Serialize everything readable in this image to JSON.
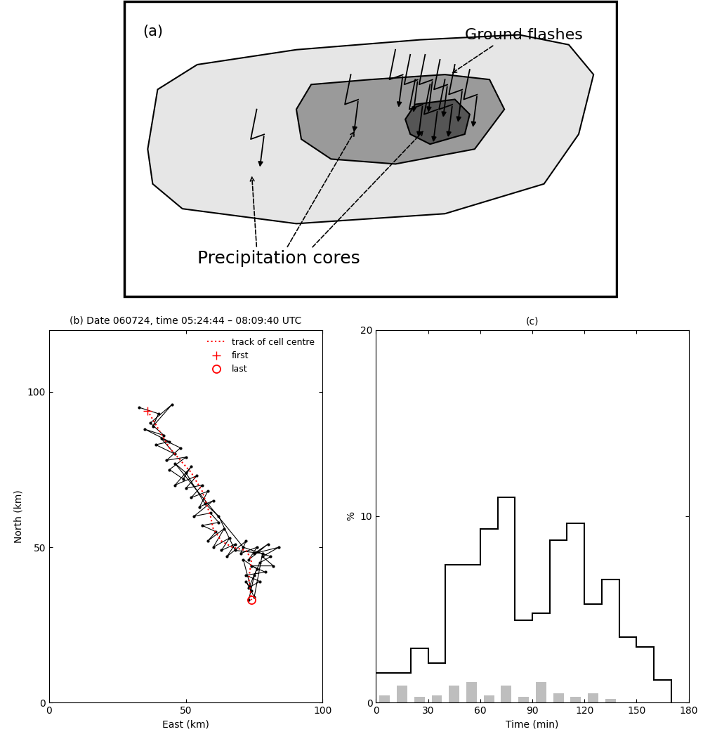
{
  "chart_data": [
    {
      "type": "diagram",
      "panel_label": "(a)",
      "annotations": [
        "Ground flashes",
        "Precipitation cores"
      ]
    },
    {
      "type": "line",
      "title": "(b) Date 060724, time 05:24:44 – 08:09:40 UTC",
      "x_label": "East (km)",
      "y_label": "North (km)",
      "xlim": [
        0,
        100
      ],
      "ylim": [
        0,
        120
      ],
      "xticks": [
        0,
        50,
        100
      ],
      "yticks": [
        0,
        50,
        100
      ],
      "legend": "upper right",
      "series": [
        {
          "color": "#000000",
          "marker": "point",
          "line_style": "solid",
          "x": [
            33,
            40,
            38,
            45,
            37,
            42,
            35,
            44,
            39,
            46,
            41,
            48,
            43,
            50,
            44,
            49,
            52,
            46,
            54,
            50,
            56,
            52,
            58,
            55,
            60,
            53,
            59,
            62,
            56,
            61,
            58,
            64,
            60,
            66,
            63,
            68,
            65,
            72,
            70,
            76,
            73,
            80,
            75,
            84,
            78,
            82,
            74,
            79,
            72,
            77,
            73,
            76,
            71,
            74,
            72,
            75,
            78,
            68,
            62,
            57,
            50,
            46,
            71,
            81,
            77,
            75,
            73
          ],
          "y": [
            95,
            93,
            89,
            96,
            90,
            86,
            88,
            84,
            83,
            80,
            85,
            82,
            78,
            79,
            75,
            72,
            76,
            70,
            73,
            69,
            70,
            66,
            68,
            63,
            65,
            60,
            61,
            58,
            57,
            55,
            52,
            56,
            50,
            53,
            49,
            51,
            47,
            52,
            48,
            50,
            46,
            51,
            48,
            50,
            47,
            44,
            44,
            42,
            41,
            39,
            37,
            43,
            46,
            36,
            39,
            34,
            48,
            49,
            60,
            64,
            74,
            77,
            50,
            47,
            45,
            41,
            33
          ]
        },
        {
          "name": "track of cell centre",
          "color": "#ff0000",
          "marker": "none",
          "line_style": "dotted",
          "x": [
            36,
            40,
            44,
            48,
            52,
            56,
            59,
            60,
            63,
            67,
            72,
            74,
            73,
            74
          ],
          "y": [
            94,
            88,
            82,
            78,
            74,
            68,
            60,
            56,
            52,
            50,
            49,
            46,
            40,
            33
          ]
        },
        {
          "name": "first",
          "color": "#ff0000",
          "marker": "plus",
          "line_style": "none",
          "x": [
            36
          ],
          "y": [
            94
          ]
        },
        {
          "name": "last",
          "color": "#ff0000",
          "marker": "circle",
          "line_style": "none",
          "x": [
            74
          ],
          "y": [
            33
          ]
        }
      ]
    },
    {
      "type": "histogram",
      "title": "(c)",
      "x_label": "Time (min)",
      "y_label": "%",
      "xlim": [
        0,
        180
      ],
      "ylim": [
        0,
        20
      ],
      "xticks": [
        0,
        30,
        60,
        90,
        120,
        150,
        180
      ],
      "yticks": [
        0,
        10,
        20
      ],
      "bins": [
        0,
        10,
        20,
        30,
        40,
        50,
        60,
        70,
        80,
        90,
        100,
        110,
        120,
        130,
        140,
        150,
        160,
        170
      ],
      "series": [
        {
          "type": "step",
          "color": "#000000",
          "values": [
            1.6,
            1.6,
            2.9,
            2.1,
            7.4,
            7.4,
            9.3,
            11.0,
            4.4,
            4.8,
            8.7,
            9.6,
            5.3,
            6.6,
            3.5,
            3.0,
            1.2
          ]
        },
        {
          "type": "bar",
          "color": "#bebebe",
          "values": [
            0.4,
            0.9,
            0.3,
            0.4,
            0.9,
            1.1,
            0.4,
            0.9,
            0.3,
            1.1,
            0.5,
            0.3,
            0.5,
            0.2,
            null,
            null,
            null
          ]
        }
      ]
    }
  ]
}
